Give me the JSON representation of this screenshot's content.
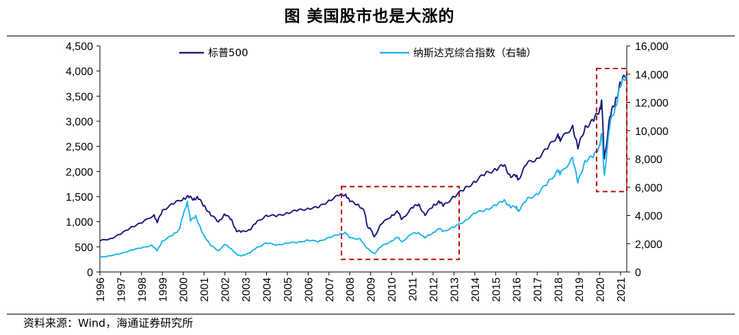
{
  "title": "图  美国股市也是大涨的",
  "source": "资料来源：Wind，海通证券研究所",
  "chart_data": {
    "type": "line",
    "title": "图  美国股市也是大涨的",
    "x_range": [
      1996,
      2021.3
    ],
    "x_tick_labels": [
      "1996",
      "1997",
      "1998",
      "1999",
      "2000",
      "2001",
      "2002",
      "2003",
      "2004",
      "2005",
      "2006",
      "2007",
      "2008",
      "2009",
      "2010",
      "2011",
      "2012",
      "2013",
      "2014",
      "2015",
      "2016",
      "2017",
      "2018",
      "2019",
      "2020",
      "2021"
    ],
    "y_left": {
      "range": [
        0,
        4500
      ],
      "ticks": [
        "0",
        "500",
        "1,000",
        "1,500",
        "2,000",
        "2,500",
        "3,000",
        "3,500",
        "4,000",
        "4,500"
      ]
    },
    "y_right": {
      "range": [
        0,
        16000
      ],
      "ticks": [
        "0",
        "2,000",
        "4,000",
        "6,000",
        "8,000",
        "10,000",
        "12,000",
        "14,000",
        "16,000"
      ]
    },
    "legend_position": "top",
    "series": [
      {
        "name": "标普500",
        "axis": "left",
        "color": "#1a1a7e",
        "points": [
          [
            1996.0,
            620
          ],
          [
            1996.5,
            665
          ],
          [
            1997.0,
            750
          ],
          [
            1997.5,
            900
          ],
          [
            1998.0,
            970
          ],
          [
            1998.6,
            1140
          ],
          [
            1998.75,
            980
          ],
          [
            1999.0,
            1230
          ],
          [
            1999.5,
            1350
          ],
          [
            2000.0,
            1460
          ],
          [
            2000.25,
            1500
          ],
          [
            2000.5,
            1450
          ],
          [
            2000.7,
            1480
          ],
          [
            2001.0,
            1320
          ],
          [
            2001.3,
            1150
          ],
          [
            2001.7,
            1000
          ],
          [
            2002.0,
            1150
          ],
          [
            2002.3,
            1050
          ],
          [
            2002.55,
            820
          ],
          [
            2002.8,
            800
          ],
          [
            2003.2,
            840
          ],
          [
            2003.5,
            980
          ],
          [
            2004.0,
            1130
          ],
          [
            2004.5,
            1110
          ],
          [
            2005.0,
            1180
          ],
          [
            2005.5,
            1220
          ],
          [
            2006.0,
            1270
          ],
          [
            2006.5,
            1280
          ],
          [
            2007.0,
            1430
          ],
          [
            2007.5,
            1520
          ],
          [
            2007.8,
            1550
          ],
          [
            2008.0,
            1400
          ],
          [
            2008.4,
            1350
          ],
          [
            2008.7,
            1200
          ],
          [
            2008.85,
            900
          ],
          [
            2009.0,
            850
          ],
          [
            2009.18,
            700
          ],
          [
            2009.5,
            950
          ],
          [
            2010.0,
            1120
          ],
          [
            2010.3,
            1200
          ],
          [
            2010.5,
            1050
          ],
          [
            2011.0,
            1280
          ],
          [
            2011.3,
            1350
          ],
          [
            2011.6,
            1130
          ],
          [
            2012.0,
            1320
          ],
          [
            2012.3,
            1400
          ],
          [
            2012.5,
            1320
          ],
          [
            2013.0,
            1500
          ],
          [
            2013.5,
            1650
          ],
          [
            2014.0,
            1800
          ],
          [
            2014.5,
            1950
          ],
          [
            2015.0,
            2050
          ],
          [
            2015.4,
            2120
          ],
          [
            2015.7,
            1920
          ],
          [
            2016.0,
            1900
          ],
          [
            2016.1,
            1850
          ],
          [
            2016.5,
            2150
          ],
          [
            2017.0,
            2270
          ],
          [
            2017.5,
            2450
          ],
          [
            2018.0,
            2750
          ],
          [
            2018.1,
            2600
          ],
          [
            2018.7,
            2920
          ],
          [
            2018.95,
            2450
          ],
          [
            2019.3,
            2900
          ],
          [
            2019.7,
            3000
          ],
          [
            2020.0,
            3250
          ],
          [
            2020.1,
            3380
          ],
          [
            2020.22,
            2250
          ],
          [
            2020.5,
            3100
          ],
          [
            2020.75,
            3400
          ],
          [
            2021.0,
            3750
          ],
          [
            2021.3,
            3950
          ]
        ]
      },
      {
        "name": "纳斯达克综合指数（右轴）",
        "axis": "right",
        "color": "#1fb4ea",
        "points": [
          [
            1996.0,
            1050
          ],
          [
            1996.5,
            1150
          ],
          [
            1997.0,
            1300
          ],
          [
            1997.5,
            1550
          ],
          [
            1998.0,
            1700
          ],
          [
            1998.5,
            1900
          ],
          [
            1998.75,
            1500
          ],
          [
            1999.0,
            2200
          ],
          [
            1999.5,
            2600
          ],
          [
            1999.8,
            3000
          ],
          [
            2000.0,
            4000
          ],
          [
            2000.2,
            5000
          ],
          [
            2000.35,
            3600
          ],
          [
            2000.6,
            4000
          ],
          [
            2000.9,
            2800
          ],
          [
            2001.0,
            2600
          ],
          [
            2001.3,
            1900
          ],
          [
            2001.7,
            1500
          ],
          [
            2002.0,
            1950
          ],
          [
            2002.3,
            1650
          ],
          [
            2002.6,
            1200
          ],
          [
            2002.8,
            1150
          ],
          [
            2003.2,
            1350
          ],
          [
            2003.5,
            1700
          ],
          [
            2004.0,
            2050
          ],
          [
            2004.5,
            1900
          ],
          [
            2005.0,
            2050
          ],
          [
            2005.5,
            2100
          ],
          [
            2006.0,
            2250
          ],
          [
            2006.5,
            2150
          ],
          [
            2007.0,
            2450
          ],
          [
            2007.5,
            2650
          ],
          [
            2007.8,
            2800
          ],
          [
            2008.0,
            2400
          ],
          [
            2008.5,
            2350
          ],
          [
            2008.8,
            1700
          ],
          [
            2009.18,
            1300
          ],
          [
            2009.5,
            1800
          ],
          [
            2010.0,
            2200
          ],
          [
            2010.3,
            2450
          ],
          [
            2010.5,
            2150
          ],
          [
            2011.0,
            2700
          ],
          [
            2011.3,
            2800
          ],
          [
            2011.6,
            2400
          ],
          [
            2012.0,
            2800
          ],
          [
            2012.3,
            3050
          ],
          [
            2012.5,
            2900
          ],
          [
            2013.0,
            3150
          ],
          [
            2013.5,
            3600
          ],
          [
            2014.0,
            4150
          ],
          [
            2014.5,
            4400
          ],
          [
            2015.0,
            4700
          ],
          [
            2015.4,
            5100
          ],
          [
            2015.7,
            4600
          ],
          [
            2016.0,
            4600
          ],
          [
            2016.1,
            4300
          ],
          [
            2016.5,
            5150
          ],
          [
            2017.0,
            5500
          ],
          [
            2017.5,
            6300
          ],
          [
            2018.0,
            7200
          ],
          [
            2018.1,
            6900
          ],
          [
            2018.7,
            8100
          ],
          [
            2018.95,
            6300
          ],
          [
            2019.3,
            7900
          ],
          [
            2019.7,
            8150
          ],
          [
            2020.0,
            9000
          ],
          [
            2020.1,
            9800
          ],
          [
            2020.22,
            6850
          ],
          [
            2020.5,
            10500
          ],
          [
            2020.75,
            11700
          ],
          [
            2021.0,
            13100
          ],
          [
            2021.3,
            14100
          ]
        ]
      }
    ],
    "annotations": [
      {
        "type": "dashed-box",
        "color": "#c00000",
        "x": [
          2007.6,
          2013.25
        ],
        "y_left": [
          250,
          1700
        ]
      },
      {
        "type": "dashed-box",
        "color": "#c00000",
        "x": [
          2019.85,
          2021.3
        ],
        "y_left": [
          1600,
          4050
        ]
      }
    ]
  }
}
